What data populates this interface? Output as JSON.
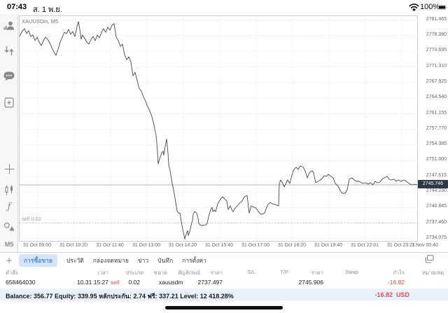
{
  "status_bar": {
    "time": "07:43",
    "date": "ส. 1 พ.ย.",
    "battery": "100%"
  },
  "sidebar": {
    "icons": [
      "account",
      "trade-arrows",
      "chat",
      "new-order",
      "crosshair",
      "chart-type-candles",
      "indicators-f",
      "objects"
    ],
    "indicators_glyph": "ƒ",
    "timeframe": "M5"
  },
  "chart": {
    "symbol_label": "XAUUSDm, M5",
    "current_price": "2745.746",
    "sell_line_label": "sell 0.02"
  },
  "chart_data": {
    "type": "line",
    "title": "XAUUSDm, M5",
    "symbol": "XAUUSDm",
    "timeframe": "M5",
    "legend": "none",
    "grid": true,
    "x_ticks": [
      "31 Oct 09:00",
      "31 Oct 10:20",
      "31 Oct 11:40",
      "31 Oct 13:00",
      "31 Oct 14:20",
      "31 Oct 15:40",
      "31 Oct 17:00",
      "31 Oct 18:20",
      "31 Oct 19:40",
      "31 Oct 22:01",
      "31 Oct 23:21",
      "1 Nov 00:40"
    ],
    "y_ticks": [
      "2781.465",
      "2778.080",
      "2774.695",
      "2771.310",
      "2767.925",
      "2764.540",
      "2761.155",
      "2757.770",
      "2754.385",
      "2751.000",
      "2747.615",
      "2744.230",
      "2740.845",
      "2737.460",
      "2734.075"
    ],
    "ylim": [
      2733.3,
      2782.4
    ],
    "current_price": 2745.746,
    "position_line": {
      "type": "sell",
      "volume": "0.02",
      "open_price": 2737.497,
      "label": "sell 0.02"
    },
    "series": [
      {
        "name": "XAUUSDm bid",
        "points": [
          [
            0,
            2777.92
          ],
          [
            4,
            2779.15
          ],
          [
            7,
            2779.6
          ],
          [
            10,
            2778.53
          ],
          [
            13,
            2779.15
          ],
          [
            16,
            2777.92
          ],
          [
            19,
            2778.23
          ],
          [
            22,
            2777.01
          ],
          [
            25,
            2777.77
          ],
          [
            28,
            2776.7
          ],
          [
            31,
            2775.94
          ],
          [
            34,
            2777.01
          ],
          [
            37,
            2777.77
          ],
          [
            40,
            2777.31
          ],
          [
            43,
            2776.55
          ],
          [
            46,
            2775.48
          ],
          [
            49,
            2774.57
          ],
          [
            52,
            2773.81
          ],
          [
            55,
            2775.18
          ],
          [
            58,
            2776.7
          ],
          [
            61,
            2777.77
          ],
          [
            64,
            2778.84
          ],
          [
            67,
            2778.53
          ],
          [
            70,
            2779.45
          ],
          [
            73,
            2778.38
          ],
          [
            76,
            2778.99
          ],
          [
            79,
            2777.92
          ],
          [
            82,
            2780.06
          ],
          [
            84,
            2781.13
          ],
          [
            86,
            2779.45
          ],
          [
            88,
            2777.31
          ],
          [
            90,
            2778.23
          ],
          [
            93,
            2777.47
          ],
          [
            96,
            2776.7
          ],
          [
            99,
            2776.25
          ],
          [
            102,
            2777.31
          ],
          [
            105,
            2777.92
          ],
          [
            108,
            2777.01
          ],
          [
            111,
            2778.23
          ],
          [
            114,
            2777.62
          ],
          [
            117,
            2778.84
          ],
          [
            120,
            2779.6
          ],
          [
            123,
            2778.84
          ],
          [
            126,
            2779.91
          ],
          [
            129,
            2779.3
          ],
          [
            132,
            2780.36
          ],
          [
            135,
            2780.67
          ],
          [
            138,
            2777.77
          ],
          [
            141,
            2777.01
          ],
          [
            144,
            2775.79
          ],
          [
            147,
            2776.25
          ],
          [
            150,
            2773.96
          ],
          [
            153,
            2772.89
          ],
          [
            156,
            2773.5
          ],
          [
            159,
            2772.43
          ],
          [
            162,
            2769.38
          ],
          [
            165,
            2770.15
          ],
          [
            168,
            2768.32
          ],
          [
            171,
            2766.64
          ],
          [
            174,
            2766.03
          ],
          [
            177,
            2764.81
          ],
          [
            180,
            2763.89
          ],
          [
            183,
            2762.67
          ],
          [
            186,
            2761.76
          ],
          [
            189,
            2760.54
          ],
          [
            192,
            2758.71
          ],
          [
            195,
            2756.42
          ],
          [
            196,
            2754.9
          ],
          [
            198,
            2750.32
          ],
          [
            201,
            2751.85
          ],
          [
            203,
            2752.61
          ],
          [
            205,
            2753.07
          ],
          [
            206,
            2752.15
          ],
          [
            208,
            2754.13
          ],
          [
            210,
            2755.66
          ],
          [
            212,
            2752.61
          ],
          [
            213,
            2750.02
          ],
          [
            215,
            2748.8
          ],
          [
            218,
            2746.05
          ],
          [
            220,
            2744.68
          ],
          [
            223,
            2741.93
          ],
          [
            225,
            2740.1
          ],
          [
            227,
            2739.65
          ],
          [
            229,
            2739.65
          ],
          [
            231,
            2737.82
          ],
          [
            233,
            2736.14
          ],
          [
            235,
            2734.77
          ],
          [
            236,
            2734.0
          ],
          [
            238,
            2735.07
          ],
          [
            240,
            2735.83
          ],
          [
            241,
            2734.77
          ],
          [
            243,
            2735.53
          ],
          [
            245,
            2736.9
          ],
          [
            247,
            2738.12
          ],
          [
            248,
            2739.34
          ],
          [
            250,
            2739.95
          ],
          [
            253,
            2739.65
          ],
          [
            255,
            2738.43
          ],
          [
            256,
            2737.36
          ],
          [
            258,
            2737.05
          ],
          [
            261,
            2736.9
          ],
          [
            263,
            2737.05
          ],
          [
            266,
            2737.05
          ],
          [
            268,
            2737.36
          ],
          [
            270,
            2738.88
          ],
          [
            273,
            2740.41
          ],
          [
            275,
            2740.87
          ],
          [
            276,
            2739.95
          ],
          [
            278,
            2740.26
          ],
          [
            280,
            2739.95
          ],
          [
            283,
            2741.63
          ],
          [
            286,
            2742.39
          ],
          [
            288,
            2742.85
          ],
          [
            290,
            2743.15
          ],
          [
            293,
            2742.7
          ],
          [
            296,
            2742.24
          ],
          [
            298,
            2740.41
          ],
          [
            301,
            2741.17
          ],
          [
            303,
            2740.41
          ],
          [
            305,
            2739.95
          ],
          [
            308,
            2740.71
          ],
          [
            311,
            2741.17
          ],
          [
            315,
            2741.93
          ],
          [
            318,
            2742.24
          ],
          [
            321,
            2743.15
          ],
          [
            325,
            2743.46
          ],
          [
            328,
            2739.65
          ],
          [
            331,
            2741.17
          ],
          [
            335,
            2740.87
          ],
          [
            338,
            2740.71
          ],
          [
            341,
            2739.95
          ],
          [
            345,
            2739.34
          ],
          [
            348,
            2739.49
          ],
          [
            350,
            2739.65
          ],
          [
            353,
            2740.87
          ],
          [
            355,
            2741.47
          ],
          [
            358,
            2741.93
          ],
          [
            361,
            2741.63
          ],
          [
            365,
            2741.47
          ],
          [
            368,
            2741.32
          ],
          [
            370,
            2741.17
          ],
          [
            371,
            2746.05
          ],
          [
            373,
            2746.81
          ],
          [
            376,
            2746.05
          ],
          [
            378,
            2745.29
          ],
          [
            381,
            2746.2
          ],
          [
            383,
            2746.81
          ],
          [
            386,
            2746.05
          ],
          [
            388,
            2747.27
          ],
          [
            391,
            2748.8
          ],
          [
            393,
            2749.25
          ],
          [
            395,
            2749.56
          ],
          [
            398,
            2749.1
          ],
          [
            401,
            2749.86
          ],
          [
            403,
            2749.71
          ],
          [
            405,
            2749.56
          ],
          [
            408,
            2748.8
          ],
          [
            411,
            2747.27
          ],
          [
            413,
            2748.03
          ],
          [
            415,
            2748.49
          ],
          [
            418,
            2748.8
          ],
          [
            420,
            2748.34
          ],
          [
            423,
            2746.2
          ],
          [
            426,
            2746.51
          ],
          [
            430,
            2746.81
          ],
          [
            433,
            2747.27
          ],
          [
            435,
            2747.73
          ],
          [
            438,
            2747.58
          ],
          [
            441,
            2748.03
          ],
          [
            445,
            2747.58
          ],
          [
            448,
            2747.27
          ],
          [
            451,
            2746.05
          ],
          [
            455,
            2745.44
          ],
          [
            458,
            2744.53
          ],
          [
            461,
            2743.92
          ],
          [
            465,
            2743.92
          ],
          [
            468,
            2744.68
          ],
          [
            471,
            2746.97
          ],
          [
            475,
            2747.27
          ],
          [
            478,
            2746.81
          ],
          [
            481,
            2746.51
          ],
          [
            485,
            2746.51
          ],
          [
            488,
            2746.2
          ],
          [
            491,
            2746.05
          ],
          [
            495,
            2746.2
          ],
          [
            498,
            2745.9
          ],
          [
            501,
            2746.2
          ],
          [
            505,
            2745.75
          ],
          [
            508,
            2746.51
          ],
          [
            511,
            2746.2
          ],
          [
            515,
            2746.36
          ],
          [
            518,
            2746.97
          ],
          [
            521,
            2747.27
          ],
          [
            525,
            2747.58
          ],
          [
            528,
            2746.97
          ],
          [
            531,
            2746.81
          ],
          [
            535,
            2746.97
          ],
          [
            538,
            2746.51
          ],
          [
            541,
            2746.81
          ],
          [
            545,
            2746.51
          ],
          [
            548,
            2746.81
          ],
          [
            551,
            2746.66
          ],
          [
            555,
            2746.2
          ],
          [
            558,
            2745.9
          ],
          [
            561,
            2745.75
          ],
          [
            565,
            2745.9
          ],
          [
            568,
            2745.75
          ]
        ]
      }
    ]
  },
  "tabs": {
    "plus": "+",
    "items": [
      "การซื้อขาย",
      "ประวัติ",
      "กล่องจดหมาย",
      "ข่าว",
      "บันทึก",
      "การตั้งค่า"
    ],
    "active_index": 0
  },
  "table": {
    "headers": [
      "คำสั่ง",
      "เวลา",
      "ประเภท",
      "ขนาด",
      "สัญลักษณ์",
      "ราคา",
      "S/L",
      "T/P",
      "ราคา",
      "Swap",
      "กำไร",
      "หมายเหตุ"
    ],
    "row": {
      "order": "658464030",
      "time": "10.31 15:27",
      "type": "sell",
      "volume": "0.02",
      "symbol": "xauusdm",
      "open_price": "2737.497",
      "sl": "",
      "tp": "",
      "price": "2745.906",
      "swap": "",
      "profit": "-16.82",
      "comment": ""
    }
  },
  "balance_bar": {
    "summary": "Balance: 356.77 Equity: 339.95 หลักประกัน: 2.74 ฟรี: 337.21 Level: 12 418.28%",
    "profit": "-16.82",
    "currency": "USD"
  },
  "colors": {
    "accent_blue": "#1566c7",
    "tab_pill_bg": "#d4e4fa",
    "sell_red": "#e2504c",
    "price_pill_bg": "#2e3744",
    "balance_bg": "#e9f1fb",
    "line": "#44474a"
  }
}
